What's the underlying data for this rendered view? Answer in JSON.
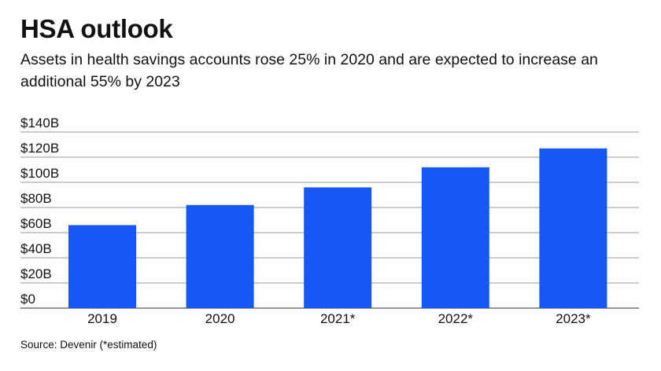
{
  "chart_data": {
    "type": "bar",
    "title": "HSA outlook",
    "subtitle": "Assets in health savings accounts rose 25% in 2020 and are expected to increase an additional 55% by 2023",
    "categories": [
      "2019",
      "2020",
      "2021*",
      "2022*",
      "2023*"
    ],
    "values": [
      66,
      82,
      96,
      112,
      127
    ],
    "unit": "billions USD",
    "ylim": [
      0,
      140
    ],
    "yticks": [
      0,
      20,
      40,
      60,
      80,
      100,
      120,
      140
    ],
    "ytick_labels": [
      "$0",
      "$20B",
      "$40B",
      "$60B",
      "$80B",
      "$100B",
      "$120B",
      "$140B"
    ],
    "xlabel": "",
    "ylabel": "",
    "grid": true,
    "bar_color": "#1558f5",
    "source": "Source: Devenir (*estimated)"
  }
}
